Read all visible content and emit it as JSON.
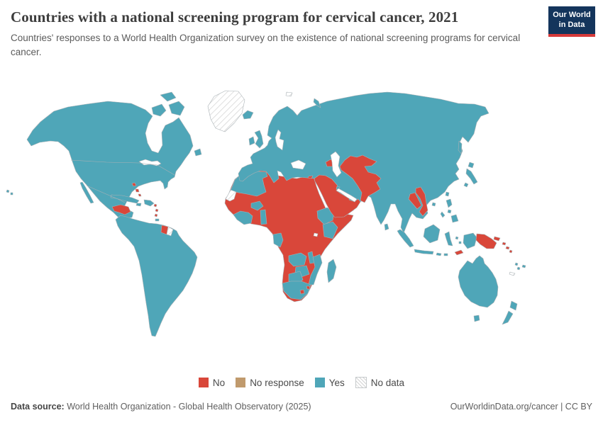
{
  "header": {
    "title": "Countries with a national screening program for cervical cancer, 2021",
    "subtitle": "Countries' responses to a World Health Organization survey on the existence of national screening programs for cervical cancer.",
    "logo": {
      "line1": "Our World",
      "line2": "in Data",
      "bg": "#14355c",
      "accent": "#d73a3a"
    }
  },
  "legend": {
    "items": [
      {
        "key": "no",
        "label": "No"
      },
      {
        "key": "no_response",
        "label": "No response"
      },
      {
        "key": "yes",
        "label": "Yes"
      },
      {
        "key": "no_data",
        "label": "No data"
      }
    ]
  },
  "colors": {
    "yes": "#4fa6b8",
    "no": "#d9473a",
    "no_response": "#c09a6d",
    "no_data_hatch": "#d2d2d2",
    "border": "#a9b1b5",
    "ocean": "#ffffff"
  },
  "footer": {
    "source_label": "Data source:",
    "source_text": " World Health Organization - Global Health Observatory (2025)",
    "right_text": "OurWorldinData.org/cancer | CC BY"
  },
  "chart_data": {
    "type": "heatmap",
    "variant": "world-choropleth-map",
    "title": "Countries with a national screening program for cervical cancer",
    "year": 2021,
    "categories": [
      "No",
      "No response",
      "Yes",
      "No data"
    ],
    "category_colors": {
      "No": "#d9473a",
      "No response": "#c09a6d",
      "Yes": "#4fa6b8",
      "No data": "white-diagonal-hatch"
    },
    "legend_position": "bottom-center",
    "regions": {
      "greenland": "no_data",
      "north_america_mainland": "yes",
      "baja_california": "yes",
      "canadian_arctic_islands": "yes",
      "newfoundland": "yes",
      "hawaii": "yes",
      "honduras": "no",
      "cuba": "yes",
      "hispaniola": "yes",
      "jamaica": "yes",
      "trinidad": "yes",
      "bahamas": "no",
      "lesser_antilles": "no",
      "south_america": "yes",
      "suriname": "no",
      "french_guiana": "no_data",
      "africa_mainland": "no",
      "morocco_algeria": "yes",
      "western_sahara": "no_data",
      "west_africa_coastal": "yes",
      "burkina_faso": "yes",
      "togo_benin": "yes",
      "gabon": "yes",
      "ethiopia": "yes",
      "kenya": "yes",
      "zambia": "yes",
      "malawi": "yes",
      "mozambique": "yes",
      "zimbabwe": "yes",
      "botswana": "yes",
      "south_africa": "yes",
      "lesotho": "no",
      "eswatini": "no",
      "madagascar": "yes",
      "eurasia_mainland": "yes",
      "united_kingdom": "yes",
      "ireland": "yes",
      "iceland": "yes",
      "svalbard": "no_data",
      "novaya_zemlya": "yes",
      "middle_east_block": "no",
      "kuwait": "yes",
      "uae": "yes",
      "cyprus": "no",
      "azerbaijan_armenia": "no",
      "central_asia_block": "no",
      "laos": "no",
      "vietnam": "no",
      "sakhalin": "yes",
      "japan": "yes",
      "taiwan": "yes",
      "hainan": "yes",
      "sri_lanka": "yes",
      "philippines": "yes",
      "indonesia_islands": "yes",
      "west_papua": "yes",
      "timor_leste": "no",
      "papua_new_guinea": "no",
      "solomon_islands": "no",
      "vanuatu": "yes",
      "fiji": "yes",
      "new_caledonia": "no_data",
      "australia": "yes",
      "tasmania": "yes",
      "new_zealand": "yes"
    }
  }
}
